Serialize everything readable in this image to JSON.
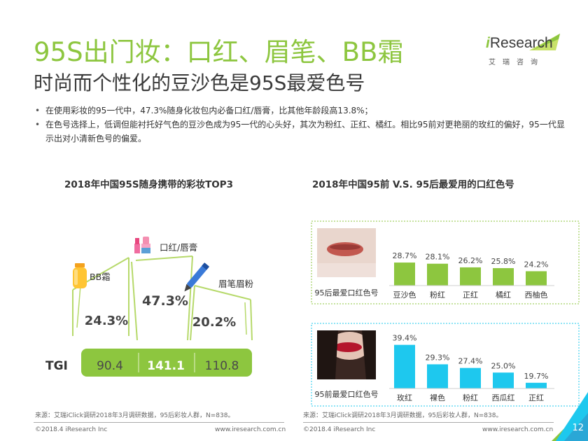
{
  "header": {
    "title": "95S出门妆：口红、眉笔、BB霜",
    "subtitle": "时尚而个性化的豆沙色是95S最爱色号"
  },
  "logo": {
    "brand_i": "i",
    "brand_rest": "Research",
    "sub": "艾瑞咨询"
  },
  "bullets": [
    "在使用彩妆的95一代中，47.3%随身化妆包内必备口红/唇膏，比其他年龄段高13.8%；",
    "在色号选择上，低调但能衬托好气色的豆沙色成为95一代的心头好，其次为粉红、正红、橘红。相比95前对更艳丽的玫红的偏好，95一代显示出对小清新色号的偏爱。"
  ],
  "left_chart": {
    "title": "2018年中国95S随身携带的彩妆TOP3",
    "tgi_label": "TGI",
    "source": "来源：艾瑞iClick调研2018年3月调研数据，95后彩妆人群，N=838。"
  },
  "right_chart": {
    "title": "2018年中国95前 V.S. 95后最爱用的口红色号",
    "source": "来源：艾瑞iClick调研2018年3月调研数据，95后彩妆人群，N=838。"
  },
  "footer": {
    "copyright_left": "©2018.4 iResearch Inc",
    "url_left": "www.iresearch.com.cn",
    "copyright_right": "©2018.4 iResearch Inc",
    "url_right": "www.iresearch.com.cn",
    "page": "12"
  },
  "colors": {
    "accent": "#8dc63f",
    "blue": "#1ec8ee"
  },
  "chart_data": [
    {
      "type": "bar",
      "title": "2018年中国95S随身携带的彩妆TOP3",
      "categories": [
        "BB霜",
        "口红/唇膏",
        "眉笔眉粉"
      ],
      "values": [
        24.3,
        47.3,
        20.2
      ],
      "value_labels": [
        "24.3%",
        "47.3%",
        "20.2%"
      ],
      "tgi": [
        90.4,
        141.1,
        110.8
      ],
      "tgi_labels": [
        "90.4",
        "141.1",
        "110.8"
      ],
      "icons": [
        "bb-cream-tube-icon",
        "lipstick-icon",
        "eyebrow-pencil-icon"
      ]
    },
    {
      "type": "bar",
      "title": "2018年中国95前 V.S. 95后最爱用的口红色号",
      "ylim": [
        0,
        45
      ],
      "series": [
        {
          "name": "95后最爱口红色号",
          "categories": [
            "豆沙色",
            "粉红",
            "正红",
            "橘红",
            "西柚色"
          ],
          "values": [
            28.7,
            28.1,
            26.2,
            25.8,
            24.2
          ],
          "labels": [
            "28.7%",
            "28.1%",
            "26.2%",
            "25.8%",
            "24.2%"
          ],
          "color": "#8dc63f"
        },
        {
          "name": "95前最爱口红色号",
          "categories": [
            "玫红",
            "裸色",
            "粉红",
            "西瓜红",
            "正红"
          ],
          "values": [
            39.4,
            29.3,
            27.4,
            25.0,
            19.7
          ],
          "labels": [
            "39.4%",
            "29.3%",
            "27.4%",
            "25.0%",
            "19.7%"
          ],
          "color": "#1ec8ee"
        }
      ]
    }
  ]
}
